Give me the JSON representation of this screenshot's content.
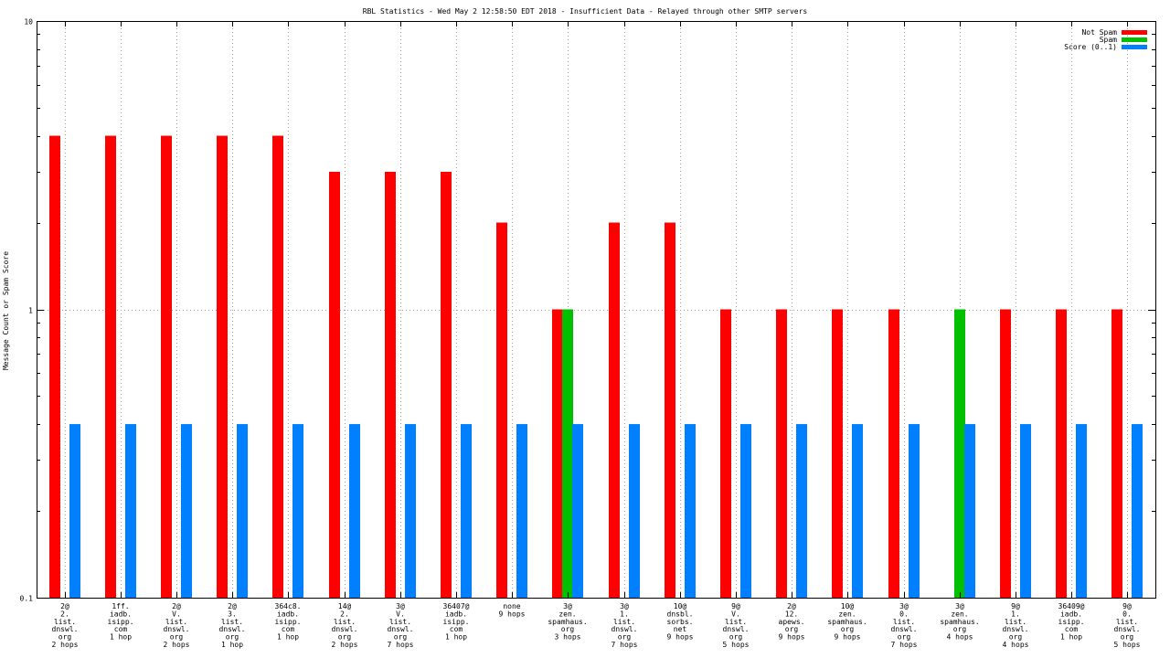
{
  "chart_data": {
    "type": "bar",
    "title": "RBL Statistics - Wed May  2 12:58:50 EDT 2018 - Insufficient Data - Relayed through other SMTP servers",
    "ylabel": "Message Count or Spam Score",
    "xlabel": "",
    "yscale": "log",
    "ylim": [
      0.1,
      10
    ],
    "yticks": [
      "0.1",
      "1",
      "10"
    ],
    "grid": true,
    "legend_position": "top-right",
    "categories": [
      [
        "2@",
        "2.",
        "list.",
        "dnswl.",
        "org",
        "2 hops"
      ],
      [
        "1ff.",
        "iadb.",
        "isipp.",
        "com",
        "1 hop"
      ],
      [
        "2@",
        "V.",
        "list.",
        "dnswl.",
        "org",
        "2 hops"
      ],
      [
        "2@",
        "3.",
        "list.",
        "dnswl.",
        "org",
        "1 hop"
      ],
      [
        "364c8.",
        "iadb.",
        "isipp.",
        "com",
        "1 hop"
      ],
      [
        "14@",
        "2.",
        "list.",
        "dnswl.",
        "org",
        "2 hops"
      ],
      [
        "3@",
        "V.",
        "list.",
        "dnswl.",
        "org",
        "7 hops"
      ],
      [
        "36407@",
        "iadb.",
        "isipp.",
        "com",
        "1 hop"
      ],
      [
        "none",
        "9 hops"
      ],
      [
        "3@",
        "zen.",
        "spamhaus.",
        "org",
        "3 hops"
      ],
      [
        "3@",
        "1.",
        "list.",
        "dnswl.",
        "org",
        "7 hops"
      ],
      [
        "10@",
        "dnsbl.",
        "sorbs.",
        "net",
        "9 hops"
      ],
      [
        "9@",
        "V.",
        "list.",
        "dnswl.",
        "org",
        "5 hops"
      ],
      [
        "2@",
        "12.",
        "apews.",
        "org",
        "9 hops"
      ],
      [
        "10@",
        "zen.",
        "spamhaus.",
        "org",
        "9 hops"
      ],
      [
        "3@",
        "0.",
        "list.",
        "dnswl.",
        "org",
        "7 hops"
      ],
      [
        "3@",
        "zen.",
        "spamhaus.",
        "org",
        "4 hops"
      ],
      [
        "9@",
        "1.",
        "list.",
        "dnswl.",
        "org",
        "4 hops"
      ],
      [
        "36409@",
        "iadb.",
        "isipp.",
        "com",
        "1 hop"
      ],
      [
        "9@",
        "0.",
        "list.",
        "dnswl.",
        "org",
        "5 hops"
      ]
    ],
    "series": [
      {
        "name": "Not Spam",
        "color": "#ff0000",
        "values": [
          4,
          4,
          4,
          4,
          4,
          3,
          3,
          3,
          2,
          1,
          2,
          2,
          1,
          1,
          1,
          1,
          0,
          1,
          1,
          1
        ]
      },
      {
        "name": "Spam",
        "color": "#00c000",
        "values": [
          0,
          0,
          0,
          0,
          0,
          0,
          0,
          0,
          0,
          1,
          0,
          0,
          0,
          0,
          0,
          0,
          1,
          0,
          0,
          0
        ]
      },
      {
        "name": "Score (0..1)",
        "color": "#0080ff",
        "values": [
          0.4,
          0.4,
          0.4,
          0.4,
          0.4,
          0.4,
          0.4,
          0.4,
          0.4,
          0.4,
          0.4,
          0.4,
          0.4,
          0.4,
          0.4,
          0.4,
          0.4,
          0.4,
          0.4,
          0.4
        ]
      }
    ]
  }
}
